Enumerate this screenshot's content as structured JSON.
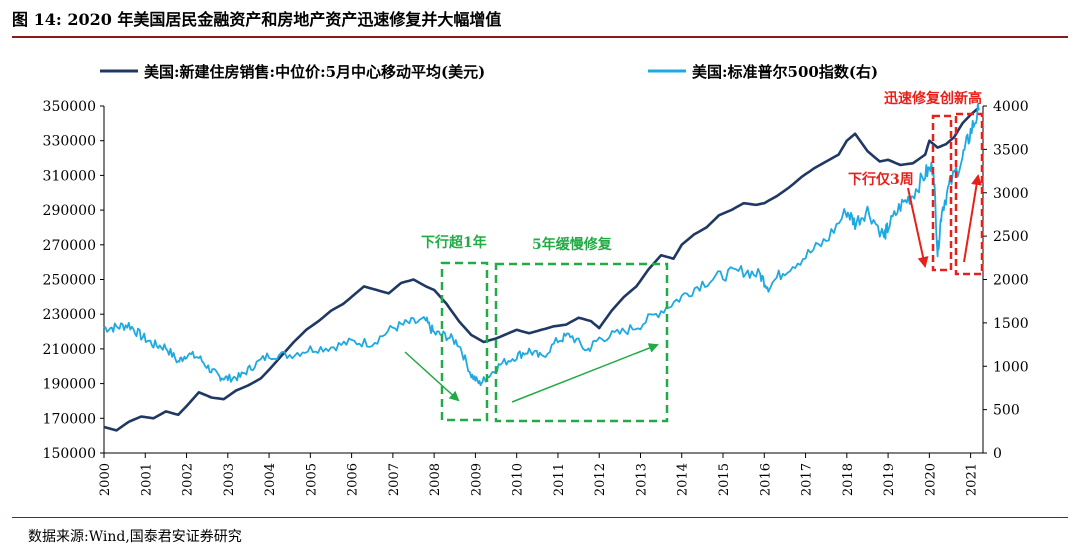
{
  "figure_title": "图 14:  2020 年美国居民金融资产和房地产资产迅速修复并大幅增值",
  "source": "数据来源:Wind,国泰君安证券研究",
  "colors": {
    "left_series": "#203864",
    "right_series": "#1fa9e1",
    "annotation_green": "#22aa44",
    "annotation_red": "#e8201a",
    "rule": "#8a1a1a"
  },
  "chart_data": {
    "type": "line",
    "legend_position": "top",
    "grid": false,
    "xlim": [
      2000,
      2021.3
    ],
    "x_ticks": [
      2000,
      2001,
      2002,
      2003,
      2004,
      2005,
      2006,
      2007,
      2008,
      2009,
      2010,
      2011,
      2012,
      2013,
      2014,
      2015,
      2016,
      2017,
      2018,
      2019,
      2020,
      2021
    ],
    "x_tick_labels": [
      "2000",
      "2001",
      "2002",
      "2003",
      "2004",
      "2005",
      "2006",
      "2007",
      "2008",
      "2009",
      "2010",
      "2011",
      "2012",
      "2013",
      "2014",
      "2015",
      "2016",
      "2017",
      "2018",
      "2019",
      "2020",
      "2021"
    ],
    "left_axis": {
      "ylim": [
        150000,
        350000
      ],
      "ticks": [
        150000,
        170000,
        190000,
        210000,
        230000,
        250000,
        270000,
        290000,
        310000,
        330000,
        350000
      ],
      "tick_labels": [
        "150000",
        "170000",
        "190000",
        "210000",
        "230000",
        "250000",
        "270000",
        "290000",
        "310000",
        "330000",
        "350000"
      ]
    },
    "right_axis": {
      "ylim": [
        0,
        4000
      ],
      "ticks": [
        0,
        500,
        1000,
        1500,
        2000,
        2500,
        3000,
        3500,
        4000
      ],
      "tick_labels": [
        "0",
        "500",
        "1000",
        "1500",
        "2000",
        "2500",
        "3000",
        "3500",
        "4000"
      ]
    },
    "series": [
      {
        "name": "美国:新建住房销售:中位价:5月中心移动平均(美元)",
        "axis": "left",
        "x": [
          2000.0,
          2000.3,
          2000.6,
          2000.9,
          2001.2,
          2001.5,
          2001.8,
          2002.0,
          2002.3,
          2002.6,
          2002.9,
          2003.2,
          2003.5,
          2003.8,
          2004.0,
          2004.3,
          2004.6,
          2004.9,
          2005.2,
          2005.5,
          2005.8,
          2006.0,
          2006.3,
          2006.6,
          2006.9,
          2007.2,
          2007.5,
          2007.8,
          2008.0,
          2008.3,
          2008.6,
          2008.9,
          2009.2,
          2009.5,
          2009.8,
          2010.0,
          2010.3,
          2010.6,
          2010.9,
          2011.2,
          2011.5,
          2011.8,
          2012.0,
          2012.3,
          2012.6,
          2012.9,
          2013.2,
          2013.5,
          2013.8,
          2014.0,
          2014.3,
          2014.6,
          2014.9,
          2015.2,
          2015.5,
          2015.8,
          2016.0,
          2016.3,
          2016.6,
          2016.9,
          2017.2,
          2017.5,
          2017.8,
          2018.0,
          2018.2,
          2018.5,
          2018.8,
          2019.0,
          2019.3,
          2019.6,
          2019.9,
          2020.0,
          2020.2,
          2020.4,
          2020.6,
          2020.8,
          2021.0,
          2021.2
        ],
        "values": [
          165000,
          163000,
          168000,
          171000,
          170000,
          174000,
          172000,
          177000,
          185000,
          182000,
          181000,
          186000,
          189000,
          193000,
          198000,
          206000,
          214000,
          221000,
          226000,
          232000,
          236000,
          240000,
          246000,
          244000,
          242000,
          248000,
          250000,
          246000,
          244000,
          236000,
          226000,
          218000,
          214000,
          216000,
          219000,
          221000,
          219000,
          221000,
          223000,
          224000,
          228000,
          226000,
          222000,
          232000,
          240000,
          246000,
          256000,
          264000,
          262000,
          270000,
          276000,
          280000,
          287000,
          290000,
          294000,
          293000,
          294000,
          298000,
          303000,
          309000,
          314000,
          318000,
          322000,
          330000,
          334000,
          324000,
          318000,
          319000,
          316000,
          317000,
          322000,
          330000,
          326000,
          328000,
          332000,
          340000,
          345000,
          349000
        ]
      },
      {
        "name": "美国:标准普尔500指数(右)",
        "axis": "right",
        "x": [
          2000.0,
          2000.3,
          2000.6,
          2000.9,
          2001.2,
          2001.5,
          2001.8,
          2002.0,
          2002.3,
          2002.6,
          2002.8,
          2003.0,
          2003.3,
          2003.6,
          2004.0,
          2004.5,
          2005.0,
          2005.5,
          2006.0,
          2006.5,
          2007.0,
          2007.4,
          2007.8,
          2008.0,
          2008.3,
          2008.6,
          2008.9,
          2009.1,
          2009.3,
          2009.6,
          2010.0,
          2010.3,
          2010.6,
          2011.0,
          2011.3,
          2011.7,
          2012.0,
          2012.5,
          2013.0,
          2013.5,
          2014.0,
          2014.5,
          2015.0,
          2015.5,
          2015.9,
          2016.1,
          2016.5,
          2017.0,
          2017.5,
          2018.0,
          2018.2,
          2018.5,
          2018.9,
          2019.0,
          2019.3,
          2019.6,
          2019.9,
          2020.1,
          2020.2,
          2020.3,
          2020.5,
          2020.8,
          2021.0,
          2021.2
        ],
        "values": [
          1440,
          1450,
          1480,
          1350,
          1250,
          1220,
          1050,
          1140,
          1100,
          950,
          880,
          860,
          880,
          1000,
          1130,
          1130,
          1200,
          1220,
          1280,
          1270,
          1440,
          1500,
          1520,
          1380,
          1350,
          1260,
          900,
          800,
          880,
          1020,
          1120,
          1180,
          1100,
          1300,
          1360,
          1180,
          1320,
          1380,
          1480,
          1640,
          1800,
          1960,
          2050,
          2100,
          2050,
          1920,
          2110,
          2270,
          2450,
          2790,
          2650,
          2800,
          2500,
          2600,
          2850,
          2980,
          3220,
          3300,
          2300,
          2800,
          3100,
          3400,
          3700,
          3950
        ]
      }
    ],
    "annotations": [
      {
        "text": "下行超1年",
        "color": "green"
      },
      {
        "text": "5年缓慢修复",
        "color": "green"
      },
      {
        "text": "下行仅3周",
        "color": "red"
      },
      {
        "text": "迅速修复创新高",
        "color": "red"
      }
    ]
  }
}
